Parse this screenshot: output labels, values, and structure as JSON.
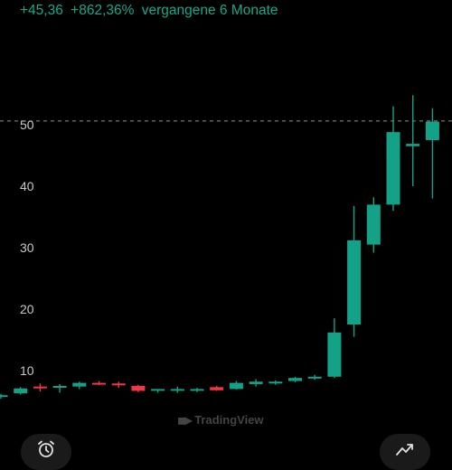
{
  "header": {
    "change_abs": "+45,36",
    "change_pct": "+862,36%",
    "period": "vergangene 6 Monate"
  },
  "watermark": "TradingView",
  "icons": {
    "alarm_button": "alarm-clock-icon",
    "indicator_button": "chart-line-icon"
  },
  "colors": {
    "up": "#13a287",
    "down": "#f23645",
    "header": "#16a98c",
    "axis_text": "#c9c9c9",
    "price_line": "#8a8a8a"
  },
  "chart_data": {
    "type": "candlestick",
    "title": "",
    "xlabel": "",
    "ylabel": "",
    "ylim": [
      0,
      60
    ],
    "yticks": [
      10,
      20,
      30,
      40,
      50
    ],
    "current_price": 50.6,
    "grid": false,
    "candles": [
      {
        "open": 5.8,
        "high": 6.2,
        "low": 5.4,
        "close": 6.0
      },
      {
        "open": 6.3,
        "high": 7.3,
        "low": 6.1,
        "close": 7.1
      },
      {
        "open": 7.4,
        "high": 7.9,
        "low": 6.6,
        "close": 7.2
      },
      {
        "open": 7.3,
        "high": 7.8,
        "low": 6.4,
        "close": 7.5
      },
      {
        "open": 7.4,
        "high": 8.2,
        "low": 7.0,
        "close": 8.0
      },
      {
        "open": 8.0,
        "high": 8.3,
        "low": 7.6,
        "close": 7.8
      },
      {
        "open": 7.9,
        "high": 8.2,
        "low": 7.2,
        "close": 7.6
      },
      {
        "open": 7.5,
        "high": 7.7,
        "low": 6.5,
        "close": 6.7
      },
      {
        "open": 6.8,
        "high": 7.0,
        "low": 6.4,
        "close": 7.0
      },
      {
        "open": 6.8,
        "high": 7.4,
        "low": 6.4,
        "close": 7.0
      },
      {
        "open": 6.8,
        "high": 7.2,
        "low": 6.5,
        "close": 7.0
      },
      {
        "open": 7.3,
        "high": 7.5,
        "low": 6.7,
        "close": 6.8
      },
      {
        "open": 7.0,
        "high": 8.3,
        "low": 6.9,
        "close": 8.0
      },
      {
        "open": 7.8,
        "high": 8.6,
        "low": 7.4,
        "close": 8.2
      },
      {
        "open": 7.9,
        "high": 8.4,
        "low": 7.7,
        "close": 8.2
      },
      {
        "open": 8.3,
        "high": 9.0,
        "low": 8.1,
        "close": 8.8
      },
      {
        "open": 8.7,
        "high": 9.3,
        "low": 8.5,
        "close": 9.0
      },
      {
        "open": 9.0,
        "high": 18.5,
        "low": 8.8,
        "close": 16.2
      },
      {
        "open": 17.5,
        "high": 36.8,
        "low": 15.5,
        "close": 31.2
      },
      {
        "open": 30.5,
        "high": 38.2,
        "low": 29.2,
        "close": 37.0
      },
      {
        "open": 37.0,
        "high": 53.0,
        "low": 36.0,
        "close": 48.8
      },
      {
        "open": 46.5,
        "high": 54.8,
        "low": 40.0,
        "close": 46.9
      },
      {
        "open": 47.5,
        "high": 52.7,
        "low": 38.0,
        "close": 50.5
      }
    ]
  }
}
